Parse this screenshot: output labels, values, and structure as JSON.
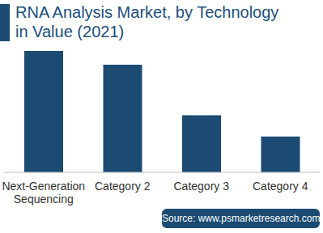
{
  "chart_data": {
    "type": "bar",
    "title": "RNA Analysis Market, by Technology in Value (2021)",
    "categories": [
      "Next-Generation Sequencing",
      "Category 2",
      "Category 3",
      "Category 4"
    ],
    "values": [
      98,
      87,
      46,
      29
    ],
    "color": "#1b4a72",
    "ylim": [
      0,
      100
    ],
    "tick_labels": "x",
    "grid": false,
    "source": "Source: www.psmarketresearch.com"
  }
}
